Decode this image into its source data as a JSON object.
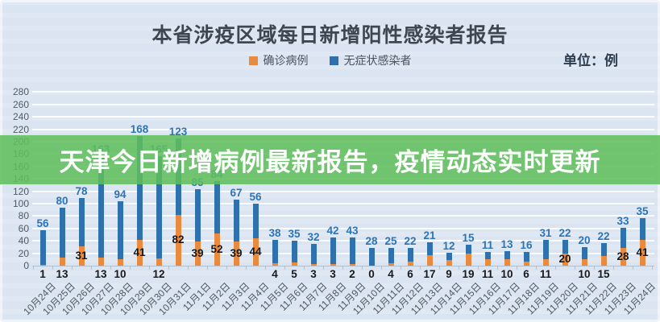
{
  "title": "本省涉疫区域每日新增阳性感染者报告",
  "unit_label": "单位：例",
  "legend": {
    "confirmed_label": "确诊病例",
    "asymptomatic_label": "无症状感染者"
  },
  "banner": {
    "text": "天津今日新增病例最新报告，疫情动态实时更新",
    "background_color": "#5fbf5b"
  },
  "colors": {
    "confirmed_bar": "#e98a3f",
    "asymptomatic_bar": "#2e71ad",
    "asymptomatic_value_label": "#2e74b5",
    "confirmed_value_label": "#16191e",
    "page_background": "#dbe5f1"
  },
  "chart_data": {
    "type": "bar",
    "stacked": true,
    "title": "本省涉疫区域每日新增阳性感染者报告",
    "unit": "例",
    "grid": true,
    "legend_position": "top",
    "ylim": [
      0,
      280
    ],
    "yticks": [
      0,
      20,
      40,
      60,
      80,
      100,
      120,
      140,
      160,
      180,
      200,
      220,
      240,
      260,
      280
    ],
    "categories": [
      "10月24日",
      "10月25日",
      "10月26日",
      "10月27日",
      "10月28日",
      "10月29日",
      "10月30日",
      "10月31日",
      "11月1日",
      "11月2日",
      "11月3日",
      "11月4日",
      "11月5日",
      "11月6日",
      "11月7日",
      "11月8日",
      "11月9日",
      "11月10日",
      "11月11日",
      "11月12日",
      "11月13日",
      "11月14日",
      "11月15日",
      "11月16日",
      "11月17日",
      "11月18日",
      "11月19日",
      "11月20日",
      "11月21日",
      "11月22日",
      "11月23日",
      "11月24日"
    ],
    "series": [
      {
        "name": "确诊病例",
        "color": "#e98a3f",
        "values": [
          1,
          13,
          31,
          13,
          10,
          41,
          12,
          82,
          39,
          52,
          39,
          44,
          4,
          5,
          3,
          3,
          2,
          0,
          4,
          6,
          17,
          9,
          19,
          11,
          10,
          6,
          11,
          20,
          10,
          15,
          28,
          41
        ]
      },
      {
        "name": "无症状感染者",
        "color": "#2e71ad",
        "values": [
          56,
          80,
          78,
          163,
          94,
          168,
          165,
          123,
          85,
          84,
          67,
          56,
          38,
          35,
          32,
          42,
          43,
          28,
          25,
          22,
          21,
          12,
          15,
          11,
          13,
          16,
          31,
          22,
          20,
          22,
          33,
          35
        ]
      }
    ]
  }
}
